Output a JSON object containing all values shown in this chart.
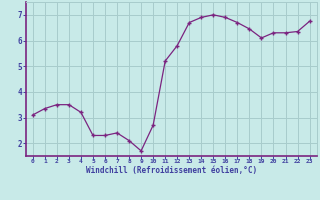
{
  "x": [
    0,
    1,
    2,
    3,
    4,
    5,
    6,
    7,
    8,
    9,
    10,
    11,
    12,
    13,
    14,
    15,
    16,
    17,
    18,
    19,
    20,
    21,
    22,
    23
  ],
  "y": [
    3.1,
    3.35,
    3.5,
    3.5,
    3.2,
    2.3,
    2.3,
    2.4,
    2.1,
    1.7,
    2.7,
    5.2,
    5.8,
    6.7,
    6.9,
    7.0,
    6.9,
    6.7,
    6.45,
    6.1,
    6.3,
    6.3,
    6.35,
    6.75
  ],
  "line_color": "#7B2480",
  "marker": "+",
  "bg_color": "#C8EAE8",
  "grid_color": "#A8CCCC",
  "xlabel": "Windchill (Refroidissement éolien,°C)",
  "xlabel_color": "#4040A0",
  "tick_color": "#4040A0",
  "ylim": [
    1.5,
    7.5
  ],
  "yticks": [
    2,
    3,
    4,
    5,
    6,
    7
  ],
  "xticks": [
    0,
    1,
    2,
    3,
    4,
    5,
    6,
    7,
    8,
    9,
    10,
    11,
    12,
    13,
    14,
    15,
    16,
    17,
    18,
    19,
    20,
    21,
    22,
    23
  ],
  "axis_color": "#4040A0",
  "spine_color": "#7B2480",
  "figsize": [
    3.2,
    2.0
  ],
  "dpi": 100
}
